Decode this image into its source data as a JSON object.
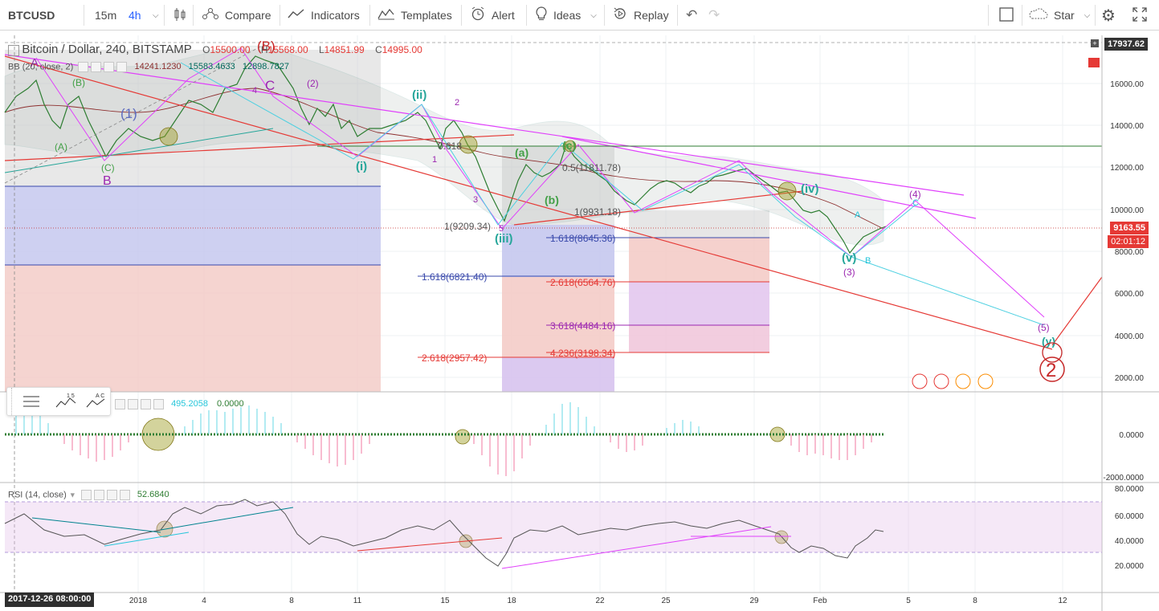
{
  "toolbar": {
    "symbol": "BTCUSD",
    "intervals": [
      "15m",
      "4h"
    ],
    "active_interval": "4h",
    "compare": "Compare",
    "indicators": "Indicators",
    "templates": "Templates",
    "alert": "Alert",
    "ideas": "Ideas",
    "replay": "Replay",
    "star": "Star"
  },
  "legend": {
    "title": "Bitcoin / Dollar, 240, BITSTAMP",
    "o_label": "O",
    "o_value": "15500.00",
    "h_label": "H",
    "h_value": "15568.00",
    "l_label": "L",
    "l_value": "14851.99",
    "c_label": "C",
    "c_value": "14995.00",
    "bb_label": "BB (20, close, 2)",
    "bb_values": [
      "14241.1230",
      "15583.4633",
      "12898.7827"
    ]
  },
  "macd": {
    "values": [
      "495.2058",
      "0.0000"
    ]
  },
  "rsi": {
    "label": "RSI (14, close)",
    "value": "52.6840"
  },
  "price_axis": {
    "labels": [
      "16000.00",
      "14000.00",
      "12000.00",
      "10000.00",
      "8000.00",
      "6000.00",
      "4000.00",
      "2000.00"
    ],
    "top_badge": "17937.62",
    "last_price": "9163.55",
    "countdown": "02:01:12"
  },
  "macd_axis": {
    "labels": [
      "0.0000",
      "-2000.0000"
    ]
  },
  "rsi_axis": {
    "labels": [
      "80.0000",
      "60.0000",
      "40.0000",
      "20.0000"
    ]
  },
  "time_axis": {
    "labels": [
      "2018",
      "4",
      "8",
      "11",
      "15",
      "18",
      "22",
      "25",
      "29",
      "Feb",
      "5",
      "8",
      "12"
    ],
    "cursor_date": "2017-12-26 08:00:00"
  },
  "fib_labels": [
    "1(9209.34)",
    "1.618(8645.36)",
    "1.618(6821.40)",
    "2.618(6564.76)",
    "3.618(4484.16)",
    "2.618(2957.42)",
    "4.236(3198.34)",
    "1(9931.18)",
    "0.5(11811.78)",
    "0.618"
  ],
  "wave_labels": [
    "A",
    "B",
    "(B)",
    "C",
    "(1)",
    "(2)",
    "(3)",
    "(4)",
    "(5)",
    "(A)",
    "(B)",
    "(C)",
    "(i)",
    "(ii)",
    "(iii)",
    "(iv)",
    "(v)",
    "(a)",
    "(b)",
    "(c)",
    "1",
    "2",
    "3",
    "4",
    "5",
    "A",
    "B",
    "C",
    "(y)",
    "2"
  ],
  "drawing_tools": [
    "lines-tool-icon",
    "wave-15-icon",
    "wave-ac-icon"
  ],
  "colors": {
    "red": "#e53935",
    "magenta": "#e040fb",
    "cyan": "#26c6da",
    "green": "#4caf50",
    "blue": "#3f51b5",
    "purple_fib": "#c5cae9",
    "pink_fib": "#f8bbd0"
  }
}
